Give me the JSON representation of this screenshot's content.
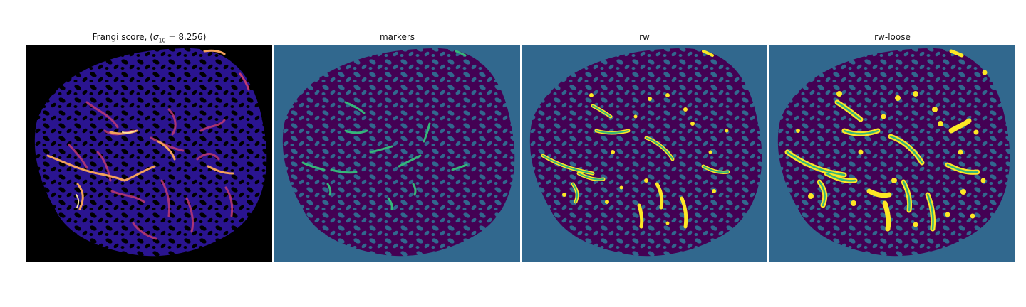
{
  "panels": [
    {
      "id": "frangi",
      "title_prefix": "Frangi score, (",
      "title_sigma": "σ",
      "title_sub": "10",
      "title_value": " = 8.256)",
      "colormap": "magma"
    },
    {
      "id": "markers",
      "title": "markers",
      "colormap": "viridis"
    },
    {
      "id": "rw",
      "title": "rw",
      "colormap": "viridis"
    },
    {
      "id": "rw-loose",
      "title": "rw-loose",
      "colormap": "viridis"
    }
  ],
  "colors": {
    "frangi_background": "#000000",
    "frangi_tissue": "#2a1490",
    "frangi_vessel": "#f4a25a",
    "label_background": "#31688e",
    "label_tissue": "#440154",
    "label_marker": "#35b779",
    "label_vessel_outline": "#fde725"
  }
}
